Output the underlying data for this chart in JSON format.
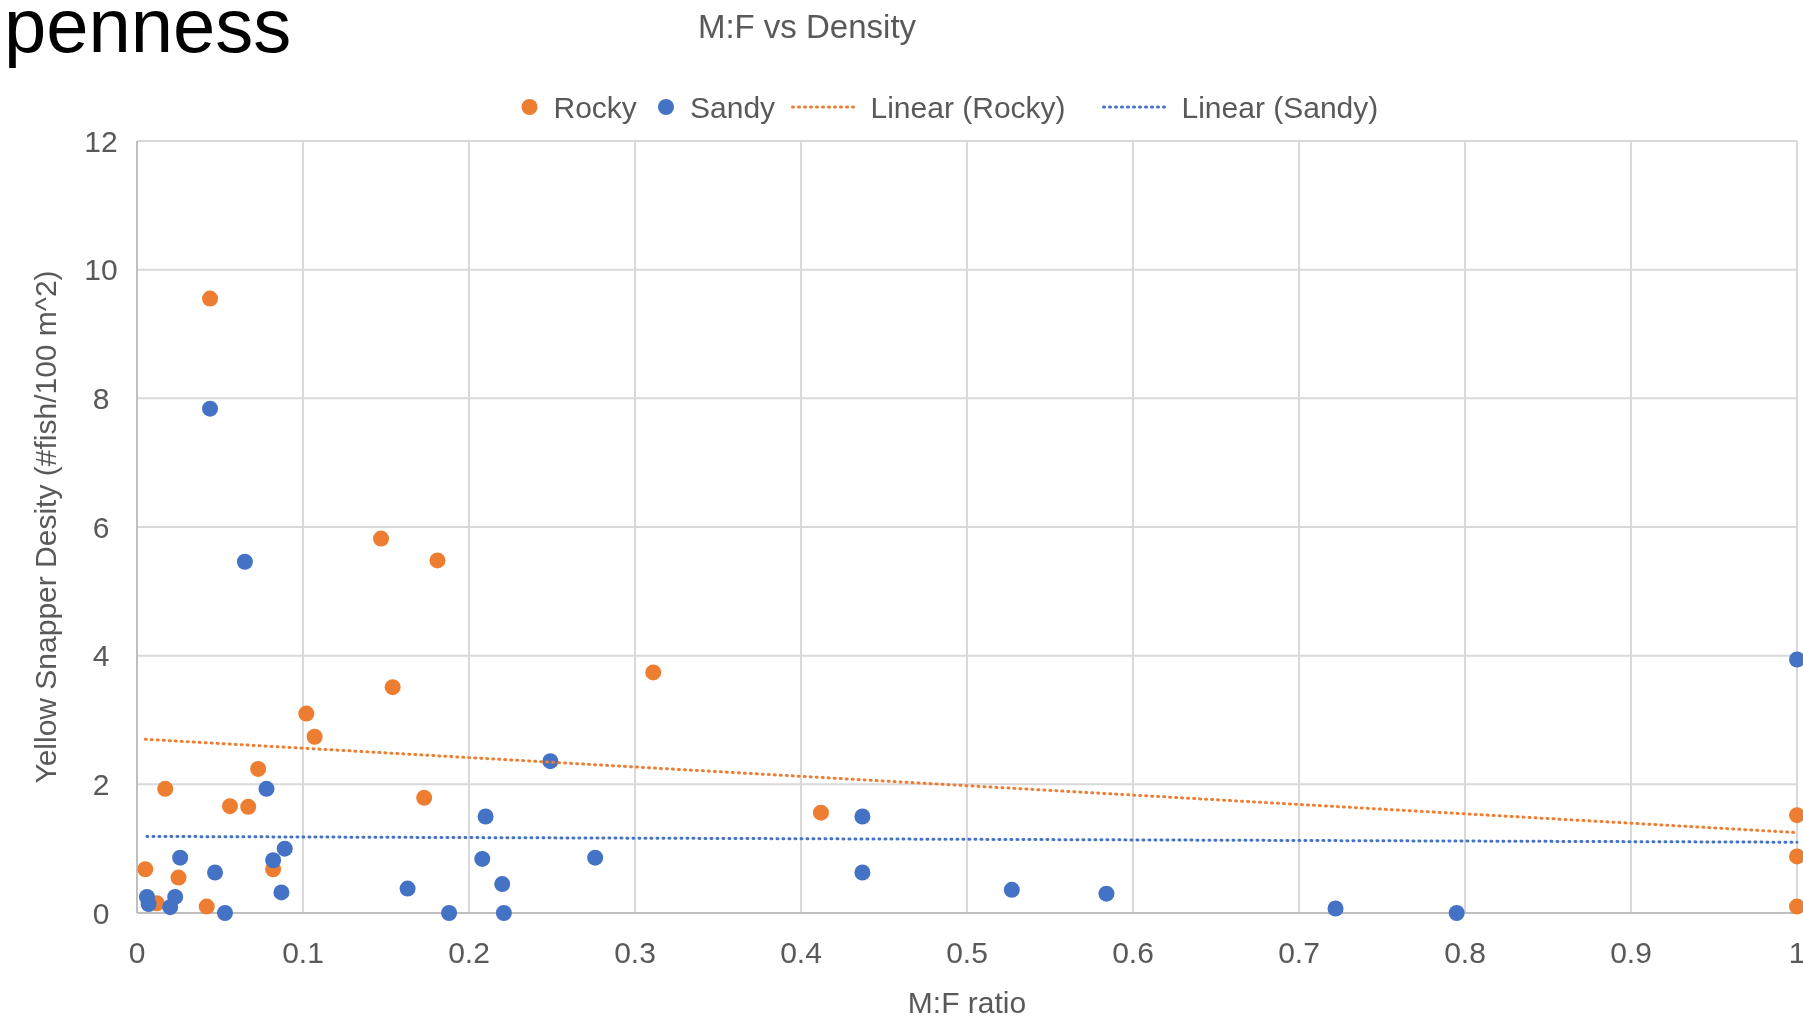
{
  "chart_data": {
    "type": "scatter",
    "title": "M:F vs Density",
    "xlabel": "M:F ratio",
    "ylabel": "Yellow Snapper Desity (#fish/100 m^2)",
    "annotations": [
      "penness"
    ],
    "xlim": [
      0,
      1
    ],
    "xticks": [
      0,
      0.1,
      0.2,
      0.3,
      0.4,
      0.5,
      0.6,
      0.7,
      0.8,
      0.9,
      1
    ],
    "ylim": [
      0,
      12
    ],
    "yticks": [
      0,
      2,
      4,
      6,
      8,
      10,
      12
    ],
    "grid": true,
    "legend": "top",
    "marker": "circle",
    "series": [
      {
        "name": "Rocky",
        "color": "#ed7d31",
        "x": [
          0.005,
          0.012,
          0.017,
          0.025,
          0.042,
          0.044,
          0.056,
          0.067,
          0.073,
          0.082,
          0.102,
          0.107,
          0.147,
          0.154,
          0.173,
          0.181,
          0.311,
          0.412,
          1,
          1,
          1
        ],
        "values": [
          0.68,
          0.15,
          1.93,
          0.55,
          0.1,
          9.55,
          1.66,
          1.65,
          2.24,
          0.68,
          3.1,
          2.74,
          5.82,
          3.51,
          1.79,
          5.48,
          3.74,
          1.56,
          1.52,
          0.88,
          0.1
        ]
      },
      {
        "name": "Sandy",
        "color": "#4472c4",
        "x": [
          0.006,
          0.007,
          0.02,
          0.023,
          0.026,
          0.044,
          0.047,
          0.053,
          0.065,
          0.078,
          0.082,
          0.087,
          0.089,
          0.163,
          0.188,
          0.208,
          0.21,
          0.22,
          0.221,
          0.249,
          0.276,
          0.437,
          0.437,
          0.527,
          0.584,
          0.722,
          0.795,
          1
        ],
        "values": [
          0.25,
          0.14,
          0.09,
          0.25,
          0.86,
          7.84,
          0.63,
          0,
          5.46,
          1.93,
          0.82,
          0.32,
          1,
          0.38,
          0,
          0.84,
          1.5,
          0.45,
          0,
          2.36,
          0.86,
          1.5,
          0.63,
          0.36,
          0.3,
          0.07,
          0,
          3.94
        ]
      },
      {
        "name": "Linear (Rocky)",
        "color": "#ed7d31",
        "type": "line",
        "line_style": "dotted",
        "marker": "none",
        "x": [
          0.005,
          1
        ],
        "values": [
          2.7,
          1.25
        ]
      },
      {
        "name": "Linear (Sandy)",
        "color": "#4472c4",
        "type": "line",
        "line_style": "dotted",
        "marker": "none",
        "x": [
          0.006,
          1
        ],
        "values": [
          1.19,
          1.1
        ]
      }
    ]
  }
}
